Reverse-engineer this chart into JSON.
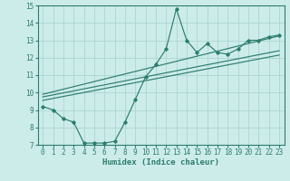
{
  "xlabel": "Humidex (Indice chaleur)",
  "bg_color": "#ccecea",
  "grid_color": "#b0d8d4",
  "line_color": "#2d7d6e",
  "xlim": [
    -0.5,
    23.5
  ],
  "ylim": [
    7,
    15
  ],
  "xticks": [
    0,
    1,
    2,
    3,
    4,
    5,
    6,
    7,
    8,
    9,
    10,
    11,
    12,
    13,
    14,
    15,
    16,
    17,
    18,
    19,
    20,
    21,
    22,
    23
  ],
  "yticks": [
    7,
    8,
    9,
    10,
    11,
    12,
    13,
    14,
    15
  ],
  "curve_x": [
    0,
    1,
    2,
    3,
    4,
    5,
    6,
    7,
    8,
    9,
    10,
    11,
    12,
    13,
    14,
    15,
    16,
    17,
    18,
    19,
    20,
    21,
    22,
    23
  ],
  "curve_y": [
    9.2,
    9.0,
    8.5,
    8.3,
    7.1,
    7.1,
    7.1,
    7.2,
    8.3,
    9.6,
    10.9,
    11.6,
    12.5,
    14.8,
    13.0,
    12.3,
    12.8,
    12.3,
    12.2,
    12.5,
    13.0,
    13.0,
    13.2,
    13.3
  ],
  "line1_x": [
    0,
    23
  ],
  "line1_y": [
    9.55,
    12.15
  ],
  "line2_x": [
    0,
    23
  ],
  "line2_y": [
    9.75,
    12.4
  ],
  "line3_x": [
    0,
    23
  ],
  "line3_y": [
    9.9,
    13.25
  ],
  "tick_fontsize": 5.5,
  "label_fontsize": 6.5
}
